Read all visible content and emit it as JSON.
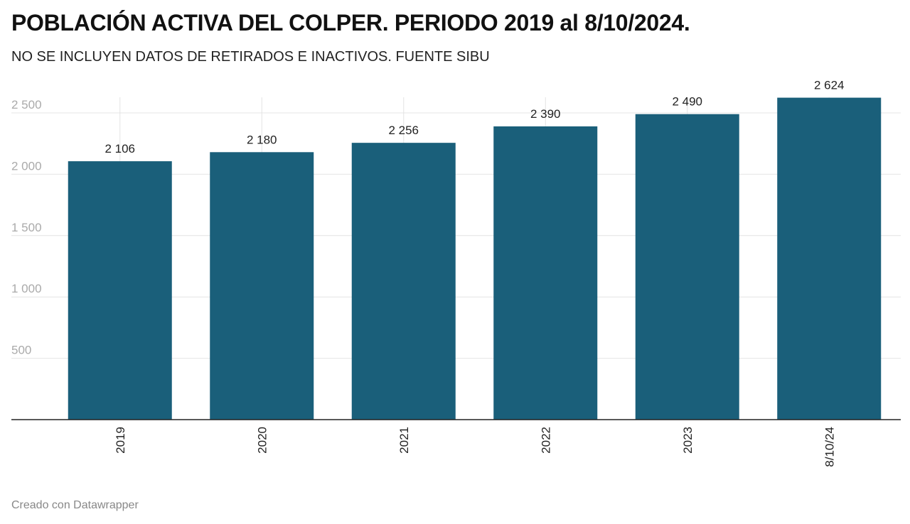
{
  "chart_data": {
    "type": "bar",
    "title": "POBLACIÓN ACTIVA DEL COLPER. PERIODO 2019 al 8/10/2024.",
    "subtitle": "NO SE INCLUYEN DATOS DE RETIRADOS E INACTIVOS. FUENTE SIBU",
    "categories": [
      "2019",
      "2020",
      "2021",
      "2022",
      "2023",
      "8/10/24"
    ],
    "values": [
      2106,
      2180,
      2256,
      2390,
      2490,
      2624
    ],
    "value_labels": [
      "2 106",
      "2 180",
      "2 256",
      "2 390",
      "2 490",
      "2 624"
    ],
    "ylim": [
      0,
      2500
    ],
    "yticks": [
      500,
      1000,
      1500,
      2000,
      2500
    ],
    "ytick_labels": [
      "500",
      "1 000",
      "1 500",
      "2 000",
      "2 500"
    ],
    "grid": true,
    "colors": {
      "bar": "#1a5f7a",
      "grid": "#e4e4e4",
      "axis": "#222222",
      "tick_label": "#aaaaaa",
      "value_label": "#222222",
      "category_label": "#222222"
    }
  },
  "footer": {
    "credit": "Creado con Datawrapper"
  }
}
